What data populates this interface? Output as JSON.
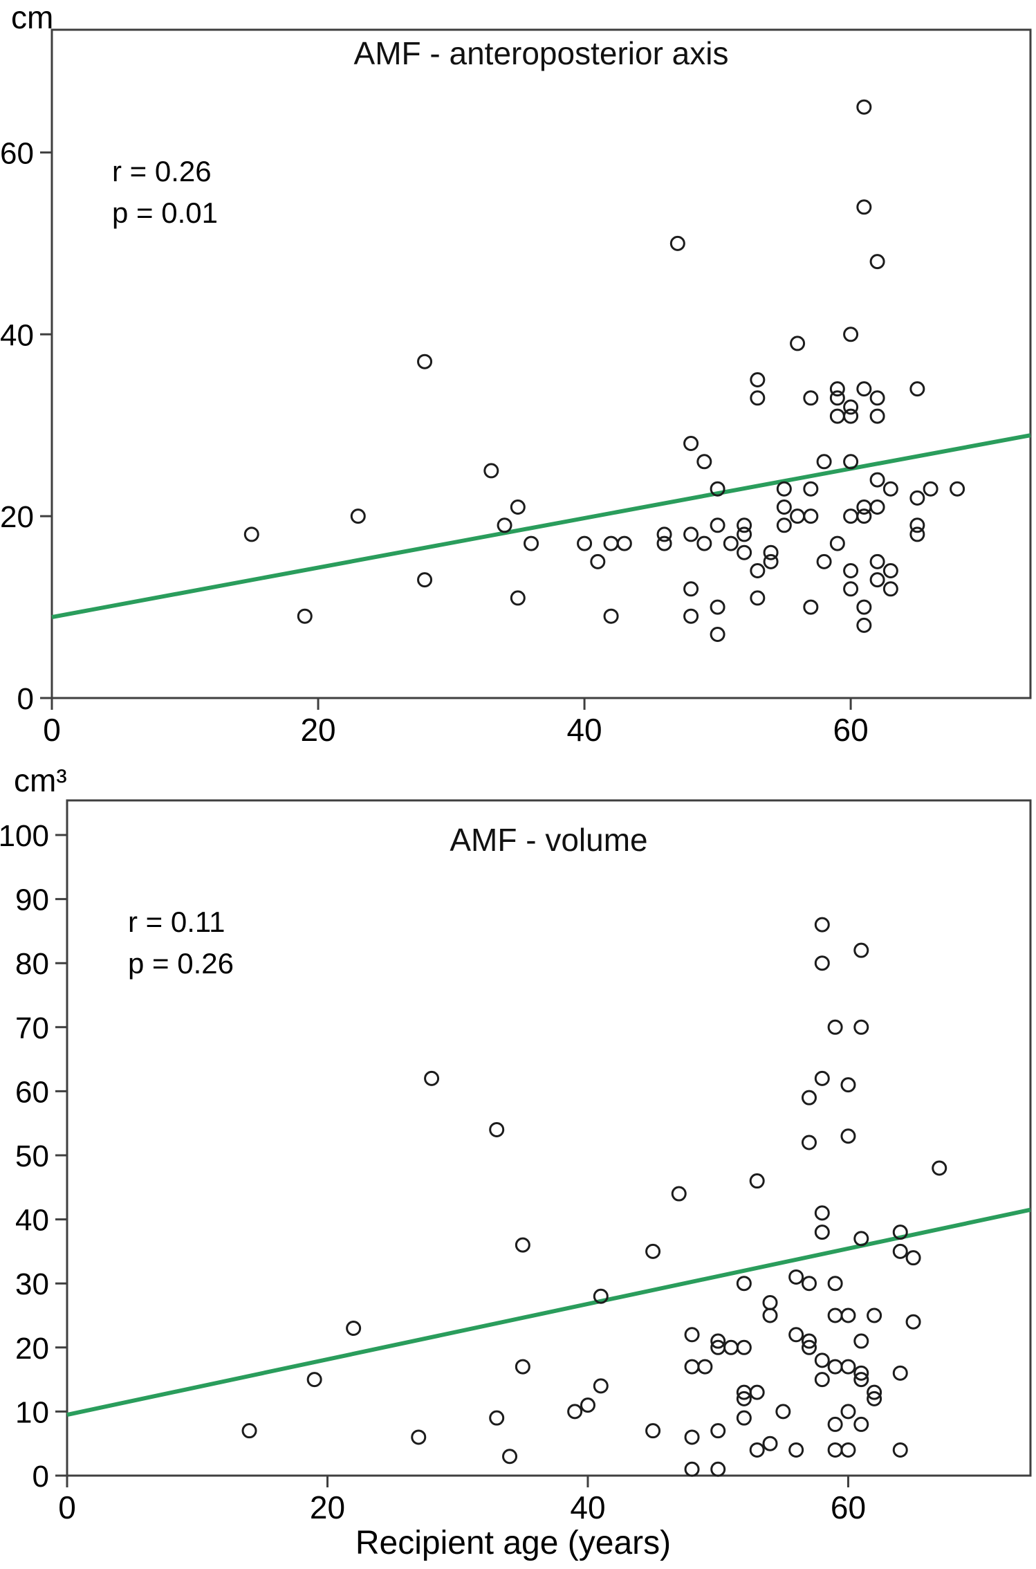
{
  "figure": {
    "background": "#ffffff",
    "axis_color": "#3f3f3f",
    "point_color": "#1c1c1c",
    "accent_green": "#2a9d5c",
    "xlabel": "Recipient age (years)"
  },
  "chart_data": [
    {
      "type": "scatter",
      "title": "AMF - anteroposterior axis",
      "unit_label": "cm",
      "stats": {
        "r": "r = 0.26",
        "p": "p = 0.01"
      },
      "xlabel": "",
      "xlim": [
        0,
        73.5
      ],
      "ylim": [
        0,
        73.5
      ],
      "x_ticks": [
        0,
        20,
        40,
        60
      ],
      "y_ticks": [
        0,
        20,
        40,
        60
      ],
      "grid": false,
      "legend": "none",
      "trend_line": {
        "x1": 0,
        "y1": 8.9,
        "x2": 73.5,
        "y2": 28.9
      },
      "points": [
        [
          15,
          18
        ],
        [
          19,
          9
        ],
        [
          23,
          20
        ],
        [
          28,
          13
        ],
        [
          28,
          37
        ],
        [
          33,
          25
        ],
        [
          34,
          19
        ],
        [
          35,
          11
        ],
        [
          35,
          21
        ],
        [
          36,
          17
        ],
        [
          40,
          17
        ],
        [
          41,
          15
        ],
        [
          42,
          9
        ],
        [
          42,
          17
        ],
        [
          43,
          17
        ],
        [
          46,
          17
        ],
        [
          46,
          18
        ],
        [
          47,
          50
        ],
        [
          48,
          18
        ],
        [
          48,
          12
        ],
        [
          48,
          9
        ],
        [
          48,
          28
        ],
        [
          49,
          17
        ],
        [
          49,
          26
        ],
        [
          50,
          23
        ],
        [
          50,
          19
        ],
        [
          50,
          10
        ],
        [
          50,
          7
        ],
        [
          51,
          17
        ],
        [
          52,
          19
        ],
        [
          52,
          18
        ],
        [
          52,
          16
        ],
        [
          53,
          35
        ],
        [
          53,
          33
        ],
        [
          53,
          14
        ],
        [
          53,
          11
        ],
        [
          54,
          16
        ],
        [
          54,
          15
        ],
        [
          55,
          23
        ],
        [
          55,
          21
        ],
        [
          55,
          19
        ],
        [
          56,
          20
        ],
        [
          56,
          39
        ],
        [
          57,
          20
        ],
        [
          57,
          33
        ],
        [
          57,
          23
        ],
        [
          57,
          10
        ],
        [
          58,
          26
        ],
        [
          58,
          15
        ],
        [
          59,
          17
        ],
        [
          59,
          34
        ],
        [
          59,
          33
        ],
        [
          59,
          31
        ],
        [
          60,
          31
        ],
        [
          60,
          32
        ],
        [
          60,
          26
        ],
        [
          60,
          20
        ],
        [
          60,
          14
        ],
        [
          60,
          12
        ],
        [
          60,
          40
        ],
        [
          61,
          65
        ],
        [
          61,
          54
        ],
        [
          61,
          34
        ],
        [
          61,
          21
        ],
        [
          61,
          20
        ],
        [
          61,
          10
        ],
        [
          61,
          8
        ],
        [
          62,
          48
        ],
        [
          62,
          33
        ],
        [
          62,
          31
        ],
        [
          62,
          24
        ],
        [
          62,
          21
        ],
        [
          62,
          15
        ],
        [
          62,
          13
        ],
        [
          63,
          23
        ],
        [
          63,
          14
        ],
        [
          63,
          12
        ],
        [
          65,
          34
        ],
        [
          65,
          22
        ],
        [
          65,
          19
        ],
        [
          65,
          18
        ],
        [
          66,
          23
        ],
        [
          68,
          23
        ]
      ]
    },
    {
      "type": "scatter",
      "title": "AMF - volume",
      "unit_label": "cm³",
      "stats": {
        "r": "r = 0.11",
        "p": "p = 0.26"
      },
      "xlabel": "Recipient age (years)",
      "xlim": [
        0,
        74
      ],
      "ylim": [
        0,
        105.4
      ],
      "x_ticks": [
        0,
        20,
        40,
        60
      ],
      "y_ticks": [
        0,
        10,
        20,
        30,
        40,
        50,
        60,
        70,
        80,
        90,
        100
      ],
      "grid": false,
      "legend": "none",
      "trend_line": {
        "x1": 0,
        "y1": 9.5,
        "x2": 74,
        "y2": 41.5
      },
      "points": [
        [
          14,
          7
        ],
        [
          19,
          15
        ],
        [
          22,
          23
        ],
        [
          27,
          6
        ],
        [
          28,
          62
        ],
        [
          33,
          54
        ],
        [
          33,
          9
        ],
        [
          34,
          3
        ],
        [
          35,
          36
        ],
        [
          35,
          17
        ],
        [
          39,
          10
        ],
        [
          40,
          11
        ],
        [
          41,
          14
        ],
        [
          41,
          28
        ],
        [
          45,
          35
        ],
        [
          45,
          7
        ],
        [
          47,
          44
        ],
        [
          48,
          22
        ],
        [
          48,
          17
        ],
        [
          48,
          6
        ],
        [
          48,
          1
        ],
        [
          49,
          17
        ],
        [
          50,
          21
        ],
        [
          50,
          20
        ],
        [
          50,
          7
        ],
        [
          50,
          1
        ],
        [
          51,
          20
        ],
        [
          52,
          20
        ],
        [
          52,
          13
        ],
        [
          52,
          12
        ],
        [
          52,
          9
        ],
        [
          52,
          30
        ],
        [
          53,
          46
        ],
        [
          53,
          13
        ],
        [
          53,
          4
        ],
        [
          54,
          27
        ],
        [
          54,
          25
        ],
        [
          54,
          5
        ],
        [
          55,
          10
        ],
        [
          56,
          31
        ],
        [
          56,
          22
        ],
        [
          56,
          4
        ],
        [
          57,
          59
        ],
        [
          57,
          52
        ],
        [
          57,
          30
        ],
        [
          57,
          21
        ],
        [
          57,
          20
        ],
        [
          58,
          86
        ],
        [
          58,
          80
        ],
        [
          58,
          62
        ],
        [
          58,
          41
        ],
        [
          58,
          38
        ],
        [
          58,
          18
        ],
        [
          58,
          15
        ],
        [
          59,
          70
        ],
        [
          59,
          30
        ],
        [
          59,
          25
        ],
        [
          59,
          17
        ],
        [
          59,
          8
        ],
        [
          59,
          4
        ],
        [
          60,
          61
        ],
        [
          60,
          53
        ],
        [
          60,
          25
        ],
        [
          60,
          17
        ],
        [
          60,
          10
        ],
        [
          60,
          4
        ],
        [
          61,
          82
        ],
        [
          61,
          70
        ],
        [
          61,
          37
        ],
        [
          61,
          21
        ],
        [
          61,
          16
        ],
        [
          61,
          15
        ],
        [
          61,
          8
        ],
        [
          62,
          25
        ],
        [
          62,
          13
        ],
        [
          62,
          12
        ],
        [
          64,
          38
        ],
        [
          64,
          35
        ],
        [
          64,
          16
        ],
        [
          64,
          4
        ],
        [
          65,
          34
        ],
        [
          65,
          24
        ],
        [
          67,
          48
        ]
      ]
    }
  ]
}
